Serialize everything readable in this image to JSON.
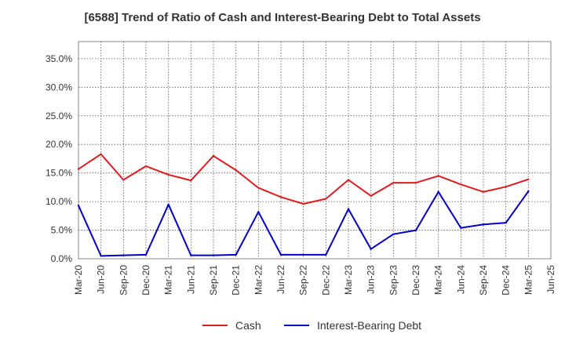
{
  "chart_data": {
    "type": "line",
    "title": "[6588]  Trend of Ratio of Cash and Interest-Bearing Debt to Total Assets",
    "xlabel": "",
    "ylabel": "",
    "ylim": [
      0,
      0.38
    ],
    "yticks": [
      0,
      0.05,
      0.1,
      0.15,
      0.2,
      0.25,
      0.3,
      0.35
    ],
    "ytick_labels": [
      "0.0%",
      "5.0%",
      "10.0%",
      "15.0%",
      "20.0%",
      "25.0%",
      "30.0%",
      "35.0%"
    ],
    "categories": [
      "Mar-20",
      "Jun-20",
      "Sep-20",
      "Dec-20",
      "Mar-21",
      "Jun-21",
      "Sep-21",
      "Dec-21",
      "Mar-22",
      "Jun-22",
      "Sep-22",
      "Dec-22",
      "Mar-23",
      "Jun-23",
      "Sep-23",
      "Dec-23",
      "Mar-24",
      "Jun-24",
      "Sep-24",
      "Dec-24",
      "Mar-25",
      "Jun-25"
    ],
    "series": [
      {
        "name": "Cash",
        "color": "#e31a1c",
        "values": [
          0.157,
          0.183,
          0.138,
          0.162,
          0.147,
          0.137,
          0.18,
          0.155,
          0.124,
          0.108,
          0.096,
          0.105,
          0.138,
          0.11,
          0.133,
          0.133,
          0.145,
          0.13,
          0.117,
          0.126,
          0.139,
          null
        ]
      },
      {
        "name": "Interest-Bearing Debt",
        "color": "#0000cc",
        "values": [
          0.093,
          0.005,
          0.006,
          0.007,
          0.095,
          0.006,
          0.006,
          0.007,
          0.082,
          0.007,
          0.007,
          0.007,
          0.087,
          0.017,
          0.043,
          0.05,
          0.117,
          0.054,
          0.06,
          0.063,
          0.118,
          null
        ]
      }
    ],
    "grid": true,
    "legend_position": "bottom"
  }
}
